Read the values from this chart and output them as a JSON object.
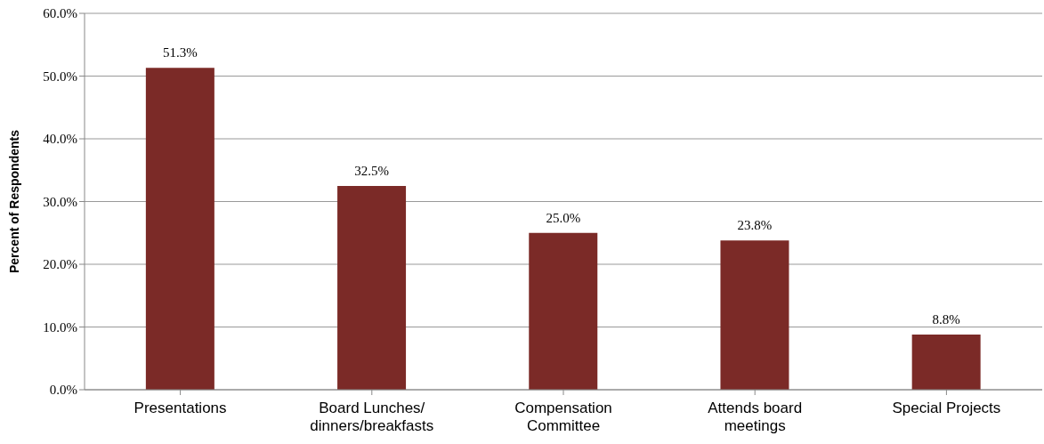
{
  "chart_data": {
    "type": "bar",
    "ylabel": "Percent of Respondents",
    "categories": [
      "Presentations",
      "Board Lunches/ dinners/breakfasts",
      "Compensation Committee",
      "Attends board meetings",
      "Special Projects"
    ],
    "values": [
      51.3,
      32.5,
      25.0,
      23.8,
      8.8
    ],
    "value_labels": [
      "51.3%",
      "32.5%",
      "25.0%",
      "23.8%",
      "8.8%"
    ],
    "color": "#7b2a27",
    "ylim": [
      0,
      60
    ],
    "yticks": [
      {
        "value": 0,
        "label": "0.0%"
      },
      {
        "value": 10,
        "label": "10.0%"
      },
      {
        "value": 20,
        "label": "20.0%"
      },
      {
        "value": 30,
        "label": "30.0%"
      },
      {
        "value": 40,
        "label": "40.0%"
      },
      {
        "value": 50,
        "label": "50.0%"
      },
      {
        "value": 60,
        "label": "60.0%"
      }
    ],
    "grid": "y"
  }
}
